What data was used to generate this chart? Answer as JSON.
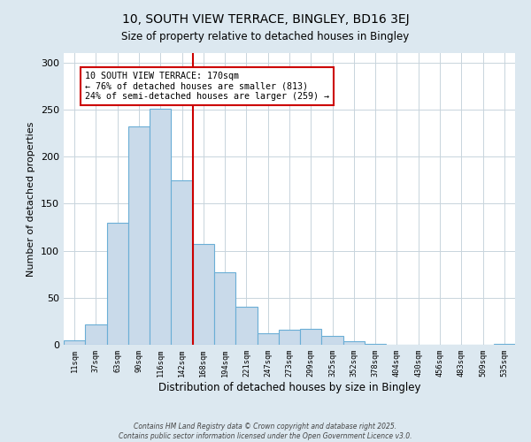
{
  "title": "10, SOUTH VIEW TERRACE, BINGLEY, BD16 3EJ",
  "subtitle": "Size of property relative to detached houses in Bingley",
  "xlabel": "Distribution of detached houses by size in Bingley",
  "ylabel": "Number of detached properties",
  "bar_labels": [
    "11sqm",
    "37sqm",
    "63sqm",
    "90sqm",
    "116sqm",
    "142sqm",
    "168sqm",
    "194sqm",
    "221sqm",
    "247sqm",
    "273sqm",
    "299sqm",
    "325sqm",
    "352sqm",
    "378sqm",
    "404sqm",
    "430sqm",
    "456sqm",
    "483sqm",
    "509sqm",
    "535sqm"
  ],
  "bar_values": [
    5,
    22,
    130,
    232,
    251,
    175,
    107,
    77,
    40,
    12,
    16,
    17,
    9,
    4,
    1,
    0,
    0,
    0,
    0,
    0,
    1
  ],
  "bar_color": "#c9daea",
  "bar_edge_color": "#6aaed6",
  "vline_color": "#cc0000",
  "annotation_text": "10 SOUTH VIEW TERRACE: 170sqm\n← 76% of detached houses are smaller (813)\n24% of semi-detached houses are larger (259) →",
  "annotation_box_edgecolor": "#cc0000",
  "ylim": [
    0,
    310
  ],
  "yticks": [
    0,
    50,
    100,
    150,
    200,
    250,
    300
  ],
  "footer_line1": "Contains HM Land Registry data © Crown copyright and database right 2025.",
  "footer_line2": "Contains public sector information licensed under the Open Government Licence v3.0.",
  "bg_color": "#dce8f0",
  "plot_bg_color": "#ffffff",
  "grid_color": "#c8d4dc"
}
